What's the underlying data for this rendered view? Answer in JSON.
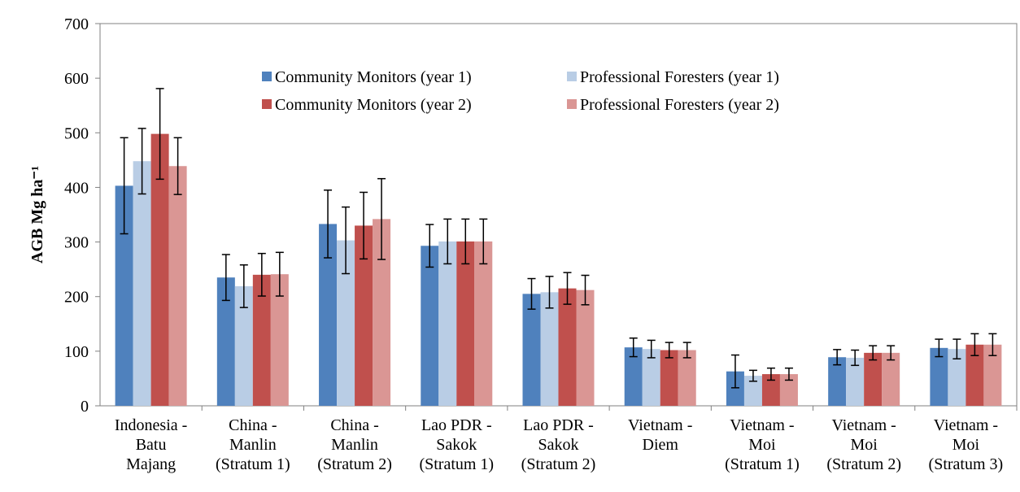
{
  "chart_data": {
    "type": "bar",
    "y_label": "AGB Mg ha⁻¹",
    "categories": [
      "Indonesia -\nBatu\nMajang",
      "China -\nManlin\n(Stratum 1)",
      "China -\nManlin\n(Stratum 2)",
      "Lao PDR -\nSakok\n(Stratum 1)",
      "Lao PDR -\nSakok\n(Stratum 2)",
      "Vietnam -\nDiem",
      "Vietnam -\nMoi\n(Stratum 1)",
      "Vietnam -\nMoi\n(Stratum 2)",
      "Vietnam -\nMoi\n(Stratum 3)"
    ],
    "series": [
      {
        "name": "Community Monitors (year 1)",
        "color": "#4f81bd",
        "values": [
          403,
          235,
          333,
          293,
          205,
          107,
          63,
          89,
          106
        ],
        "errors": [
          88,
          42,
          62,
          39,
          28,
          17,
          30,
          14,
          16
        ]
      },
      {
        "name": "Professional Foresters (year 1)",
        "color": "#b9cde5",
        "values": [
          448,
          219,
          303,
          301,
          208,
          104,
          55,
          88,
          104
        ],
        "errors": [
          60,
          39,
          61,
          41,
          29,
          16,
          10,
          14,
          18
        ]
      },
      {
        "name": "Community Monitors (year 2)",
        "color": "#c0504d",
        "values": [
          498,
          240,
          330,
          301,
          215,
          102,
          58,
          97,
          112
        ],
        "errors": [
          83,
          39,
          61,
          41,
          29,
          14,
          11,
          13,
          20
        ]
      },
      {
        "name": "Professional Foresters (year 2)",
        "color": "#da9694",
        "values": [
          439,
          241,
          342,
          301,
          212,
          102,
          58,
          97,
          112
        ],
        "errors": [
          52,
          40,
          74,
          41,
          27,
          14,
          11,
          13,
          20
        ]
      }
    ],
    "ylim": [
      0,
      700
    ],
    "yticks": [
      0,
      100,
      200,
      300,
      400,
      500,
      600,
      700
    ],
    "grid": false
  }
}
